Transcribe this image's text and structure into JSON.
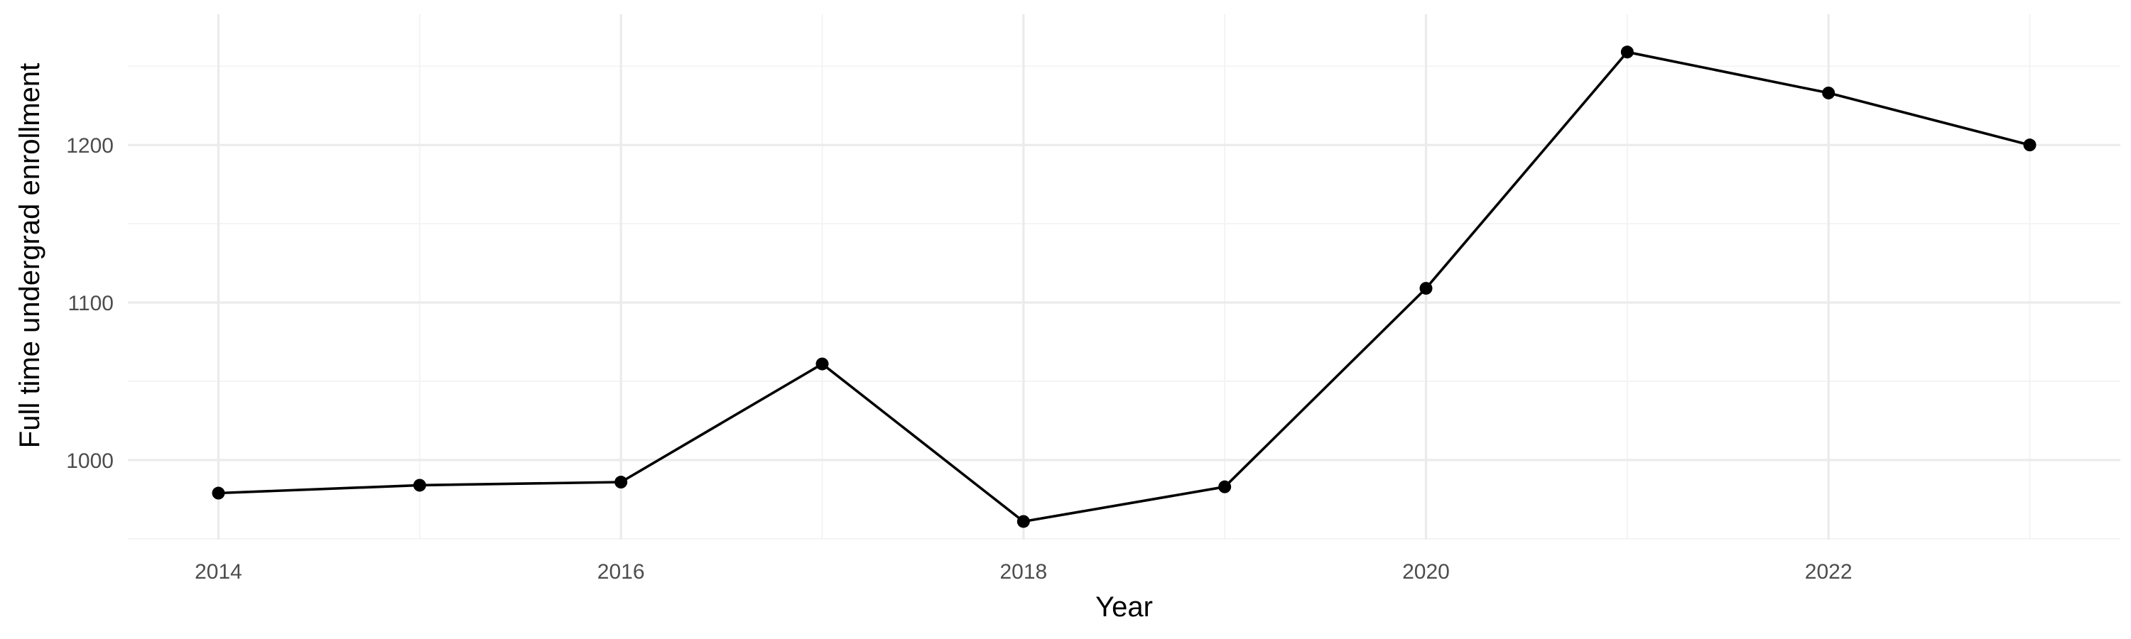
{
  "chart_data": {
    "type": "line",
    "title": "",
    "xlabel": "Year",
    "ylabel": "Full time undergrad enrollment",
    "x": [
      2014,
      2015,
      2016,
      2017,
      2018,
      2019,
      2020,
      2021,
      2022,
      2023
    ],
    "series": [
      {
        "values": [
          979,
          984,
          986,
          1061,
          961,
          983,
          1109,
          1259,
          1233,
          1200
        ]
      }
    ],
    "x_ticks": [
      2014,
      2016,
      2018,
      2020,
      2022
    ],
    "y_ticks": [
      1000,
      1100,
      1200
    ],
    "x_tick_labels": [
      "2014",
      "2016",
      "2018",
      "2020",
      "2022"
    ],
    "y_tick_labels": [
      "1000",
      "1100",
      "1200"
    ],
    "xlim": [
      2013.55,
      2023.45
    ],
    "ylim": [
      949.5,
      1283
    ],
    "grid": true,
    "legend": "none",
    "colors": {
      "line": "#000000",
      "point": "#000000",
      "grid": "#ebebeb",
      "background": "#ffffff"
    }
  }
}
